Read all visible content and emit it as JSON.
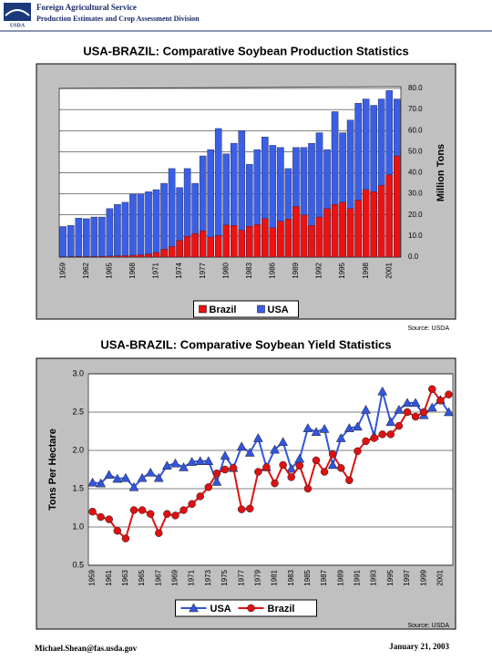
{
  "header": {
    "agency": "Foreign Agricultural Service",
    "division": "Production Estimates and Crop Assessment Division",
    "logo_text": "USDA"
  },
  "footer": {
    "email": "Michael.Shean@fas.usda.gov",
    "date": "January 21, 2003"
  },
  "chart_data": [
    {
      "type": "bar",
      "title": "USA-BRAZIL:  Comparative Soybean Production Statistics",
      "y_label": "Million Tons",
      "source": "Source: USDA",
      "legend": "bottom",
      "grid": true,
      "categories": [
        "1959",
        null,
        null,
        "1962",
        null,
        null,
        "1965",
        null,
        null,
        "1968",
        null,
        null,
        "1971",
        null,
        null,
        "1974",
        null,
        null,
        "1977",
        null,
        null,
        "1980",
        null,
        null,
        "1983",
        null,
        null,
        "1986",
        null,
        null,
        "1989",
        null,
        null,
        "1992",
        null,
        null,
        "1995",
        null,
        null,
        "1998",
        null,
        null,
        "2001",
        null
      ],
      "series": [
        {
          "name": "Brazil",
          "color": "#ee1111",
          "values": [
            0.1,
            0.2,
            0.3,
            0.3,
            0.3,
            0.4,
            0.5,
            0.6,
            0.7,
            0.9,
            1.1,
            1.5,
            2.2,
            3.7,
            5.0,
            7.9,
            9.9,
            11.2,
            12.5,
            9.5,
            10.2,
            15.2,
            15.0,
            12.8,
            14.6,
            15.5,
            18.3,
            13.9,
            17.0,
            18.0,
            24.0,
            20.0,
            15.0,
            19.0,
            23.0,
            25.0,
            26.0,
            23.0,
            27.0,
            32.0,
            31.0,
            34.0,
            39.0,
            48.0
          ]
        },
        {
          "name": "USA",
          "color": "#3a5fe6",
          "values": [
            14.5,
            15.0,
            18.5,
            18.2,
            19.0,
            19.0,
            23.0,
            25.0,
            26.0,
            30.0,
            30.0,
            31.0,
            32.0,
            35.0,
            42.0,
            33.0,
            42.0,
            35.0,
            48.0,
            51.0,
            61.0,
            49.0,
            54.0,
            60.0,
            44.0,
            51.0,
            57.0,
            53.0,
            52.0,
            42.0,
            52.0,
            52.0,
            54.0,
            59.0,
            51.0,
            69.0,
            59.0,
            65.0,
            73.0,
            75.0,
            72.0,
            75.0,
            79.0,
            75.0
          ]
        }
      ],
      "ylim": [
        0,
        80
      ],
      "yticks": [
        {
          "value": 0,
          "label": "0.0"
        },
        {
          "value": 10,
          "label": "10.0"
        },
        {
          "value": 20,
          "label": "20.0"
        },
        {
          "value": 30,
          "label": "30.0"
        },
        {
          "value": 40,
          "label": "40.0"
        },
        {
          "value": 50,
          "label": "50.0"
        },
        {
          "value": 60,
          "label": "60.0"
        },
        {
          "value": 70,
          "label": "70.0"
        },
        {
          "value": 80,
          "label": "80.0"
        }
      ]
    },
    {
      "type": "line",
      "title": "USA-BRAZIL:  Comparative Soybean Yield Statistics",
      "y_label": "Tons Per Hectare",
      "source": "Source: USDA",
      "legend": "bottom",
      "grid": true,
      "categories": [
        "1959",
        null,
        "1961",
        null,
        "1963",
        null,
        "1965",
        null,
        "1967",
        null,
        "1969",
        null,
        "1971",
        null,
        "1973",
        null,
        "1975",
        null,
        "1977",
        null,
        "1979",
        null,
        "1981",
        null,
        "1983",
        null,
        "1985",
        null,
        "1987",
        null,
        "1989",
        null,
        "1991",
        null,
        "1993",
        null,
        "1995",
        null,
        "1997",
        null,
        "1999",
        null,
        "2001",
        null
      ],
      "series": [
        {
          "name": "USA",
          "color": "#3355dd",
          "marker": "triangle",
          "values": [
            1.58,
            1.57,
            1.68,
            1.63,
            1.64,
            1.52,
            1.64,
            1.71,
            1.64,
            1.8,
            1.83,
            1.78,
            1.85,
            1.86,
            1.86,
            1.59,
            1.93,
            1.77,
            2.05,
            1.97,
            2.16,
            1.78,
            2.01,
            2.11,
            1.76,
            1.89,
            2.29,
            2.24,
            2.28,
            1.81,
            2.16,
            2.29,
            2.31,
            2.53,
            2.19,
            2.77,
            2.37,
            2.53,
            2.62,
            2.62,
            2.46,
            2.56,
            2.66,
            2.5
          ]
        },
        {
          "name": "Brazil",
          "color": "#dd1111",
          "marker": "circle",
          "values": [
            1.2,
            1.13,
            1.1,
            0.95,
            0.85,
            1.22,
            1.22,
            1.17,
            0.92,
            1.17,
            1.15,
            1.22,
            1.3,
            1.4,
            1.52,
            1.7,
            1.75,
            1.77,
            1.23,
            1.24,
            1.72,
            1.78,
            1.57,
            1.81,
            1.65,
            1.8,
            1.5,
            1.87,
            1.72,
            1.95,
            1.77,
            1.61,
            1.99,
            2.12,
            2.16,
            2.21,
            2.21,
            2.32,
            2.5,
            2.44,
            2.5,
            2.8,
            2.65,
            2.73
          ]
        }
      ],
      "ylim": [
        0.5,
        3
      ],
      "yticks": [
        0.5,
        {
          "value": 1,
          "label": "1.0"
        },
        1.5,
        {
          "value": 2,
          "label": "2.0"
        },
        2.5,
        {
          "value": 3,
          "label": "3.0"
        }
      ]
    }
  ]
}
